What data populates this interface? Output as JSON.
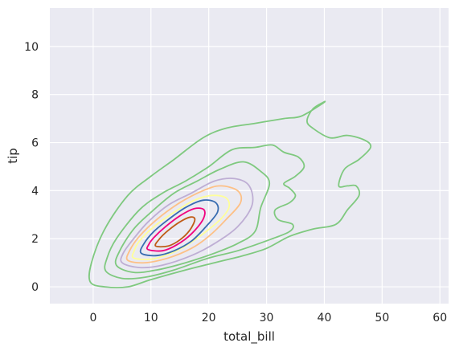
{
  "chart_data": {
    "type": "kde-contour",
    "xlabel": "total_bill",
    "ylabel": "tip",
    "xlim": [
      -7.5,
      61.5
    ],
    "ylim": [
      -0.7,
      11.6
    ],
    "xticks": [
      0,
      10,
      20,
      30,
      40,
      50,
      60
    ],
    "yticks": [
      0,
      2,
      4,
      6,
      8,
      10
    ],
    "grid": true,
    "background": "#eaeaf2",
    "gridColor": "#ffffff",
    "levels": [
      {
        "color": "#7fc97f",
        "paths": [
          [
            [
              -0.5,
              0.2
            ],
            [
              2,
              0
            ],
            [
              6,
              0
            ],
            [
              10,
              0.3
            ],
            [
              16,
              0.7
            ],
            [
              21,
              1.0
            ],
            [
              26,
              1.3
            ],
            [
              30,
              1.6
            ],
            [
              34,
              2.1
            ],
            [
              38,
              2.4
            ],
            [
              42,
              2.6
            ],
            [
              44,
              3.2
            ],
            [
              46,
              3.8
            ],
            [
              45.5,
              4.2
            ],
            [
              44,
              4.2
            ],
            [
              42.5,
              4.2
            ],
            [
              43.5,
              4.9
            ],
            [
              46,
              5.3
            ],
            [
              48,
              5.8
            ],
            [
              47,
              6.1
            ],
            [
              44,
              6.3
            ],
            [
              41,
              6.2
            ],
            [
              38,
              6.6
            ],
            [
              37,
              6.9
            ],
            [
              38,
              7.4
            ],
            [
              40,
              7.7
            ],
            [
              39.5,
              7.6
            ],
            [
              36,
              7.1
            ],
            [
              33,
              7.0
            ],
            [
              28,
              6.8
            ],
            [
              23,
              6.6
            ],
            [
              19,
              6.2
            ],
            [
              14,
              5.3
            ],
            [
              10,
              4.6
            ],
            [
              6,
              3.8
            ],
            [
              2,
              2.4
            ],
            [
              -0.3,
              1.0
            ],
            [
              -0.5,
              0.2
            ]
          ]
        ]
      },
      {
        "color": "#7fc97f",
        "paths": [
          [
            [
              2.2,
              0.65
            ],
            [
              5,
              0.35
            ],
            [
              9,
              0.4
            ],
            [
              14,
              0.7
            ],
            [
              20,
              1.2
            ],
            [
              25,
              1.5
            ],
            [
              31,
              2.0
            ],
            [
              34,
              2.3
            ],
            [
              34.5,
              2.6
            ],
            [
              32,
              2.8
            ],
            [
              31.5,
              3.2
            ],
            [
              34,
              3.5
            ],
            [
              35,
              3.8
            ],
            [
              34,
              4.1
            ],
            [
              33,
              4.3
            ],
            [
              35,
              4.6
            ],
            [
              36.5,
              5.0
            ],
            [
              35.5,
              5.4
            ],
            [
              33,
              5.6
            ],
            [
              31,
              5.9
            ],
            [
              28,
              5.8
            ],
            [
              24,
              5.7
            ],
            [
              20,
              5.0
            ],
            [
              16,
              4.4
            ],
            [
              12,
              3.9
            ],
            [
              8,
              3.2
            ],
            [
              4,
              2.0
            ],
            [
              2.4,
              1.2
            ],
            [
              2.2,
              0.65
            ]
          ]
        ]
      },
      {
        "color": "#7fc97f",
        "paths": [
          [
            [
              4,
              0.9
            ],
            [
              7,
              0.6
            ],
            [
              11,
              0.7
            ],
            [
              16,
              1.0
            ],
            [
              21,
              1.4
            ],
            [
              25,
              1.8
            ],
            [
              28,
              2.3
            ],
            [
              29,
              3.3
            ],
            [
              30.5,
              4.3
            ],
            [
              29,
              4.8
            ],
            [
              26,
              5.2
            ],
            [
              22,
              4.9
            ],
            [
              18,
              4.4
            ],
            [
              14,
              3.9
            ],
            [
              10,
              3.1
            ],
            [
              7,
              2.4
            ],
            [
              4.6,
              1.5
            ],
            [
              4,
              0.9
            ]
          ]
        ]
      },
      {
        "color": "#beaed4",
        "paths": [
          [
            [
              5,
              1.0
            ],
            [
              8,
              0.8
            ],
            [
              12,
              0.9
            ],
            [
              17,
              1.3
            ],
            [
              21,
              1.8
            ],
            [
              25,
              2.5
            ],
            [
              27.5,
              3.4
            ],
            [
              27,
              4.2
            ],
            [
              24.5,
              4.5
            ],
            [
              21,
              4.4
            ],
            [
              17,
              3.9
            ],
            [
              13,
              3.4
            ],
            [
              9.5,
              2.7
            ],
            [
              7,
              2.0
            ],
            [
              5.2,
              1.4
            ],
            [
              5,
              1.0
            ]
          ]
        ]
      },
      {
        "color": "#fdc086",
        "paths": [
          [
            [
              6,
              1.1
            ],
            [
              9,
              1.0
            ],
            [
              13,
              1.2
            ],
            [
              17,
              1.6
            ],
            [
              20,
              2.1
            ],
            [
              23,
              2.8
            ],
            [
              25.5,
              3.5
            ],
            [
              25,
              4.0
            ],
            [
              22,
              4.2
            ],
            [
              19,
              4.0
            ],
            [
              15,
              3.5
            ],
            [
              11,
              2.8
            ],
            [
              8,
              2.1
            ],
            [
              6.3,
              1.5
            ],
            [
              6,
              1.1
            ]
          ]
        ]
      },
      {
        "color": "#ffff99",
        "paths": [
          [
            [
              7,
              1.2
            ],
            [
              10,
              1.15
            ],
            [
              13,
              1.35
            ],
            [
              16,
              1.7
            ],
            [
              19,
              2.2
            ],
            [
              22,
              2.8
            ],
            [
              23.5,
              3.3
            ],
            [
              23,
              3.7
            ],
            [
              20.5,
              3.8
            ],
            [
              17.5,
              3.6
            ],
            [
              14,
              3.1
            ],
            [
              10.5,
              2.5
            ],
            [
              8,
              1.9
            ],
            [
              7.1,
              1.5
            ],
            [
              7,
              1.2
            ]
          ]
        ]
      },
      {
        "color": "#386cb0",
        "paths": [
          [
            [
              8.3,
              1.4
            ],
            [
              11,
              1.3
            ],
            [
              14,
              1.5
            ],
            [
              17,
              1.9
            ],
            [
              19.5,
              2.5
            ],
            [
              21.5,
              3.1
            ],
            [
              21.2,
              3.5
            ],
            [
              19,
              3.6
            ],
            [
              16,
              3.3
            ],
            [
              13,
              2.8
            ],
            [
              10.5,
              2.3
            ],
            [
              8.8,
              1.8
            ],
            [
              8.3,
              1.4
            ]
          ]
        ]
      },
      {
        "color": "#f0027f",
        "paths": [
          [
            [
              9.5,
              1.55
            ],
            [
              12,
              1.5
            ],
            [
              14.5,
              1.75
            ],
            [
              17,
              2.2
            ],
            [
              19,
              2.8
            ],
            [
              19.2,
              3.2
            ],
            [
              17.5,
              3.25
            ],
            [
              15,
              2.95
            ],
            [
              12.5,
              2.5
            ],
            [
              10.5,
              2.05
            ],
            [
              9.6,
              1.75
            ],
            [
              9.5,
              1.55
            ]
          ]
        ]
      },
      {
        "color": "#bf5b17",
        "paths": [
          [
            [
              10.8,
              1.7
            ],
            [
              13,
              1.7
            ],
            [
              15,
              1.95
            ],
            [
              16.7,
              2.35
            ],
            [
              17.6,
              2.8
            ],
            [
              16.8,
              2.9
            ],
            [
              15,
              2.7
            ],
            [
              13,
              2.35
            ],
            [
              11.5,
              2.0
            ],
            [
              10.8,
              1.7
            ]
          ]
        ]
      }
    ]
  }
}
